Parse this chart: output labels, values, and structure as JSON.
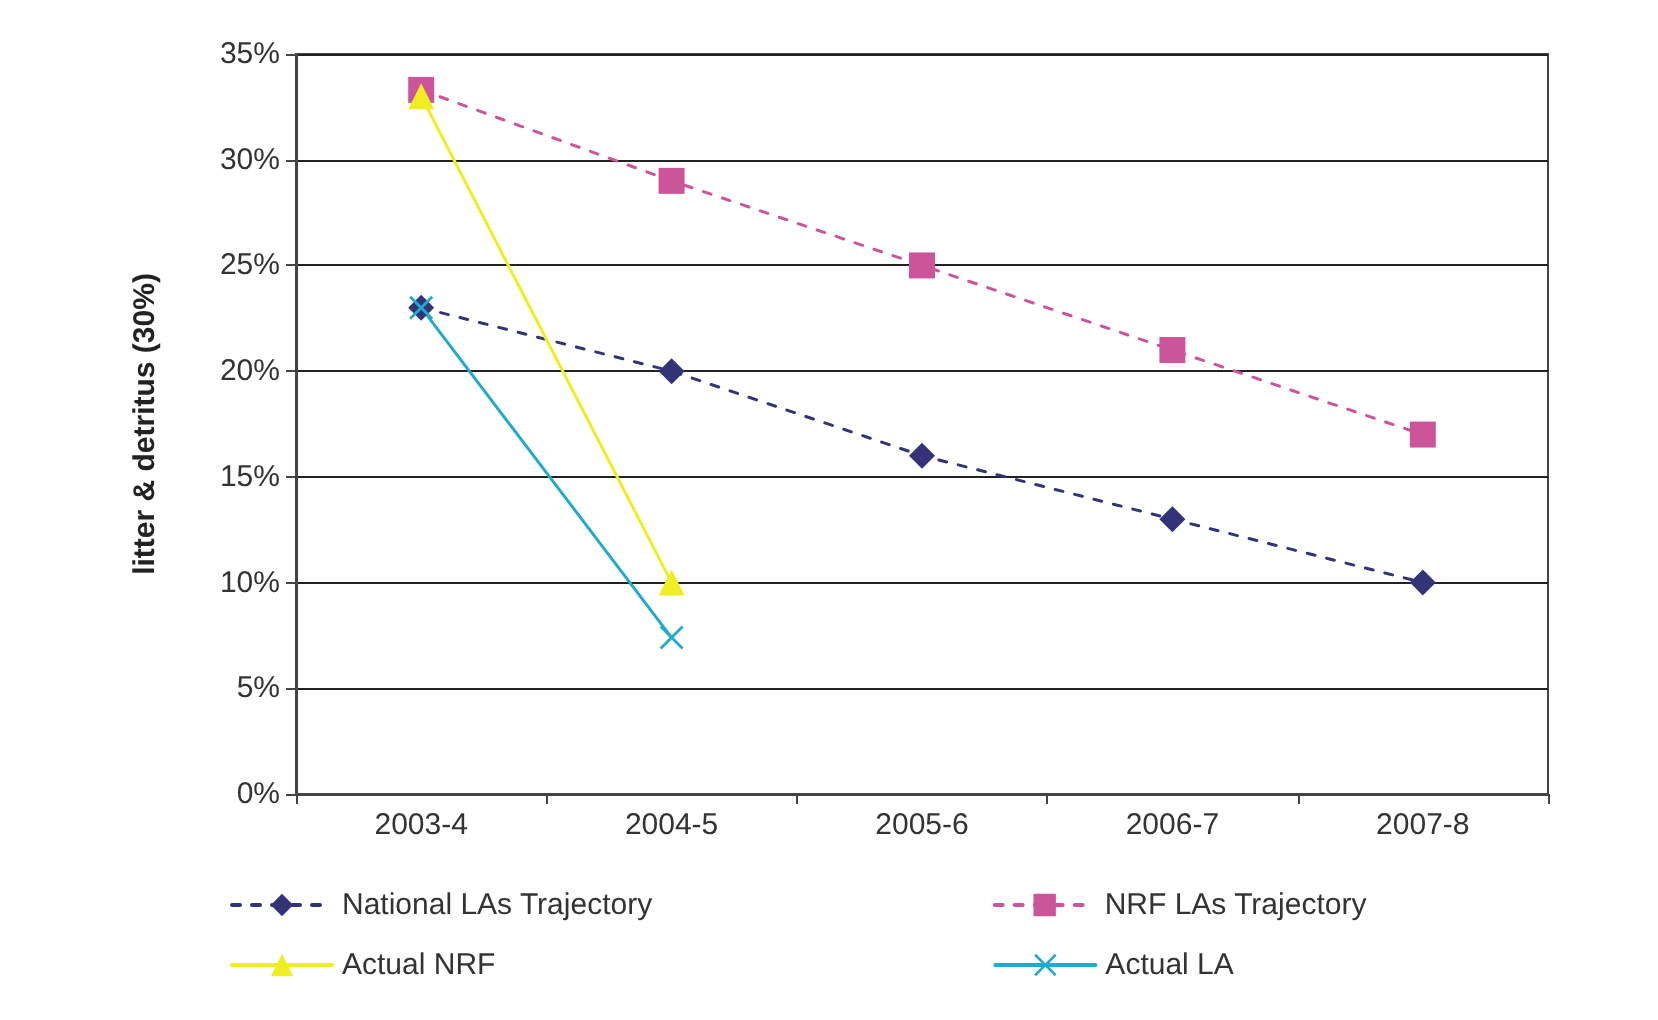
{
  "chart_data": {
    "type": "line",
    "ylabel": "litter & detritus (30%)",
    "categories": [
      "2003-4",
      "2004-5",
      "2005-6",
      "2006-7",
      "2007-8"
    ],
    "ylim": [
      0,
      35
    ],
    "yticks": [
      {
        "value": 0,
        "label": "0%"
      },
      {
        "value": 5,
        "label": "5%"
      },
      {
        "value": 10,
        "label": "10%"
      },
      {
        "value": 15,
        "label": "15%"
      },
      {
        "value": 20,
        "label": "20%"
      },
      {
        "value": 25,
        "label": "25%"
      },
      {
        "value": 30,
        "label": "30%"
      },
      {
        "value": 35,
        "label": "35%"
      }
    ],
    "grid": "y",
    "legend": "bottom",
    "series": [
      {
        "name": "National LAs Trajectory",
        "color": "#333377",
        "values": [
          23,
          20,
          16,
          13,
          10
        ],
        "marker": "diamond",
        "line_style": "dashed"
      },
      {
        "name": "NRF LAs Trajectory",
        "color": "#cc5599",
        "values": [
          33.3,
          29,
          25,
          21,
          17
        ],
        "marker": "square",
        "line_style": "dashed"
      },
      {
        "name": "Actual NRF",
        "color": "#eeee22",
        "values": [
          33,
          10,
          null,
          null,
          null
        ],
        "marker": "triangle",
        "line_style": "solid"
      },
      {
        "name": "Actual LA",
        "color": "#22aacc",
        "values": [
          23,
          7.4,
          null,
          null,
          null
        ],
        "marker": "cross",
        "line_style": "solid"
      }
    ]
  }
}
